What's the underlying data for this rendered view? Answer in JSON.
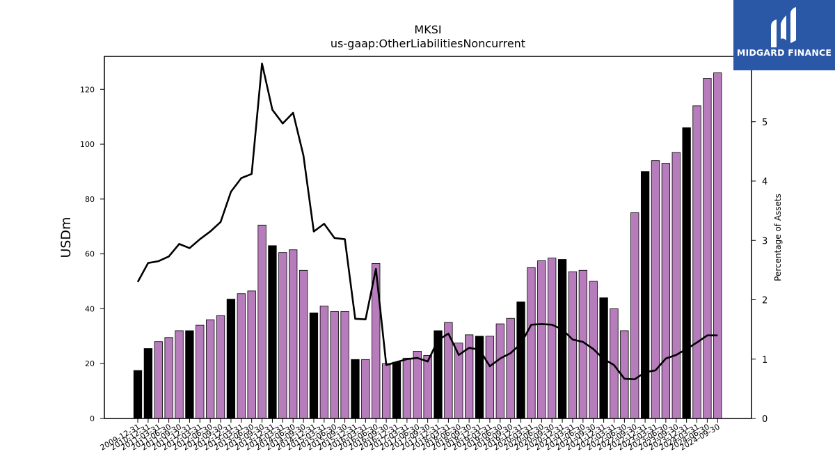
{
  "logo": {
    "text": "MIDGARD FINANCE"
  },
  "chart_data": {
    "type": "bar",
    "title": "MKSI",
    "subtitle": "us-gaap:OtherLiabilitiesNoncurrent",
    "ylabel": "USDm",
    "y2label": "Percentage of Assets",
    "ylim": [
      0,
      132
    ],
    "y2lim": [
      0,
      6.1
    ],
    "yticks": [
      0,
      20,
      40,
      60,
      80,
      100,
      120
    ],
    "y2ticks": [
      0,
      1,
      2,
      3,
      4,
      5
    ],
    "grid": false,
    "categories": [
      "2009-12-31",
      "2010-12-31",
      "2011-03-31",
      "2011-06-30",
      "2011-09-30",
      "2011-12-31",
      "2012-03-31",
      "2012-06-30",
      "2012-09-30",
      "2012-12-31",
      "2013-03-31",
      "2013-06-30",
      "2013-09-30",
      "2013-12-31",
      "2014-03-31",
      "2014-06-30",
      "2014-09-30",
      "2014-12-31",
      "2015-03-31",
      "2015-06-30",
      "2015-09-30",
      "2015-12-31",
      "2016-03-31",
      "2016-06-30",
      "2016-09-30",
      "2016-12-31",
      "2017-03-31",
      "2017-06-30",
      "2017-09-30",
      "2017-12-31",
      "2018-03-31",
      "2018-06-30",
      "2018-09-30",
      "2018-12-31",
      "2019-03-31",
      "2019-06-30",
      "2019-09-30",
      "2019-12-31",
      "2020-03-31",
      "2020-06-30",
      "2020-09-30",
      "2020-12-31",
      "2021-03-31",
      "2021-06-30",
      "2021-09-30",
      "2021-12-31",
      "2022-03-31",
      "2022-06-30",
      "2022-09-30",
      "2022-12-31",
      "2023-03-31",
      "2023-06-30",
      "2023-09-30",
      "2023-12-31",
      "2024-03-31",
      "2024-06-30",
      "2024-09-30"
    ],
    "series": [
      {
        "type": "bar",
        "values": [
          17.5,
          25.5,
          28,
          29.5,
          32,
          32,
          34,
          36,
          37.5,
          43.5,
          45.5,
          46.5,
          70.5,
          63,
          60.5,
          61.5,
          54,
          38.5,
          41,
          39,
          39,
          21.5,
          21.5,
          56.5,
          20,
          20.5,
          22,
          24.5,
          23,
          32,
          35,
          27.5,
          30.5,
          30,
          30,
          34.5,
          36.5,
          42.5,
          55,
          57.5,
          58.5,
          58,
          53.5,
          54,
          50,
          44,
          40,
          32,
          75,
          90,
          94,
          93,
          97,
          106,
          114,
          124,
          126
        ],
        "highlight": [
          true,
          true,
          false,
          false,
          false,
          true,
          false,
          false,
          false,
          true,
          false,
          false,
          false,
          true,
          false,
          false,
          false,
          true,
          false,
          false,
          false,
          true,
          false,
          false,
          false,
          true,
          false,
          false,
          false,
          true,
          false,
          false,
          false,
          true,
          false,
          false,
          false,
          true,
          false,
          false,
          false,
          true,
          false,
          false,
          false,
          true,
          false,
          false,
          false,
          true,
          false,
          false,
          false,
          true,
          false,
          false,
          false
        ],
        "colors": {
          "highlight": "#000000",
          "normal": "#b77cbc"
        }
      },
      {
        "type": "line",
        "axis": "right",
        "values": [
          2.3,
          2.62,
          2.65,
          2.73,
          2.94,
          2.87,
          3.02,
          3.15,
          3.31,
          3.82,
          4.05,
          4.12,
          5.98,
          5.2,
          4.97,
          5.15,
          4.43,
          3.15,
          3.28,
          3.04,
          3.02,
          1.68,
          1.67,
          2.52,
          0.9,
          0.95,
          1.0,
          1.02,
          0.96,
          1.32,
          1.43,
          1.07,
          1.19,
          1.16,
          0.88,
          1.01,
          1.1,
          1.26,
          1.58,
          1.59,
          1.58,
          1.5,
          1.33,
          1.29,
          1.17,
          1.0,
          0.9,
          0.67,
          0.66,
          0.78,
          0.81,
          1.01,
          1.07,
          1.17,
          1.28,
          1.4,
          1.4
        ],
        "color": "#000000"
      }
    ]
  }
}
